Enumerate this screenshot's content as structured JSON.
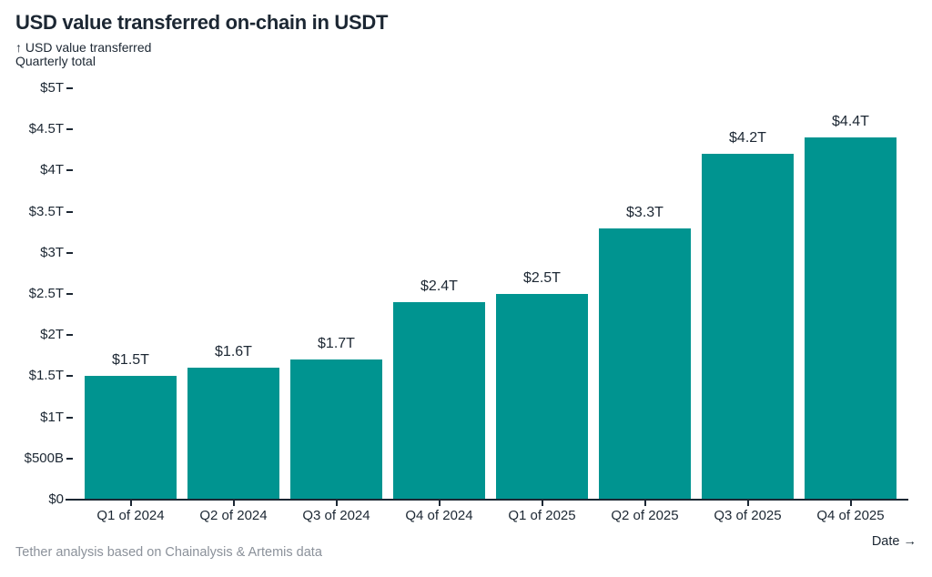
{
  "chart_data": {
    "type": "bar",
    "title": "USD value transferred on-chain in USDT",
    "y_axis_title": "↑ USD value transferred",
    "y_axis_subtitle": "Quarterly total",
    "x_axis_title": "Date →",
    "categories": [
      "Q1 of 2024",
      "Q2 of 2024",
      "Q3 of 2024",
      "Q4 of 2024",
      "Q1 of 2025",
      "Q2 of 2025",
      "Q3 of 2025",
      "Q4 of 2025"
    ],
    "values": [
      1.5,
      1.6,
      1.7,
      2.4,
      2.5,
      3.3,
      4.2,
      4.4
    ],
    "value_labels": [
      "$1.5T",
      "$1.6T",
      "$1.7T",
      "$2.4T",
      "$2.5T",
      "$3.3T",
      "$4.2T",
      "$4.4T"
    ],
    "unit": "trillions of USD",
    "y_ticks": [
      "$0",
      "$500B",
      "$1T",
      "$1.5T",
      "$2T",
      "$2.5T",
      "$3T",
      "$3.5T",
      "$4T",
      "$4.5T",
      "$5T"
    ],
    "y_tick_values": [
      0,
      0.5,
      1,
      1.5,
      2,
      2.5,
      3,
      3.5,
      4,
      4.5,
      5
    ],
    "ylim": [
      0,
      5
    ],
    "grid": false,
    "legend_position": "none",
    "source": "Tether analysis based on Chainalysis & Artemis data",
    "bar_color": "#009490",
    "text_color": "#1c2733",
    "source_color": "#8b919a",
    "background_color": "#ffffff"
  }
}
